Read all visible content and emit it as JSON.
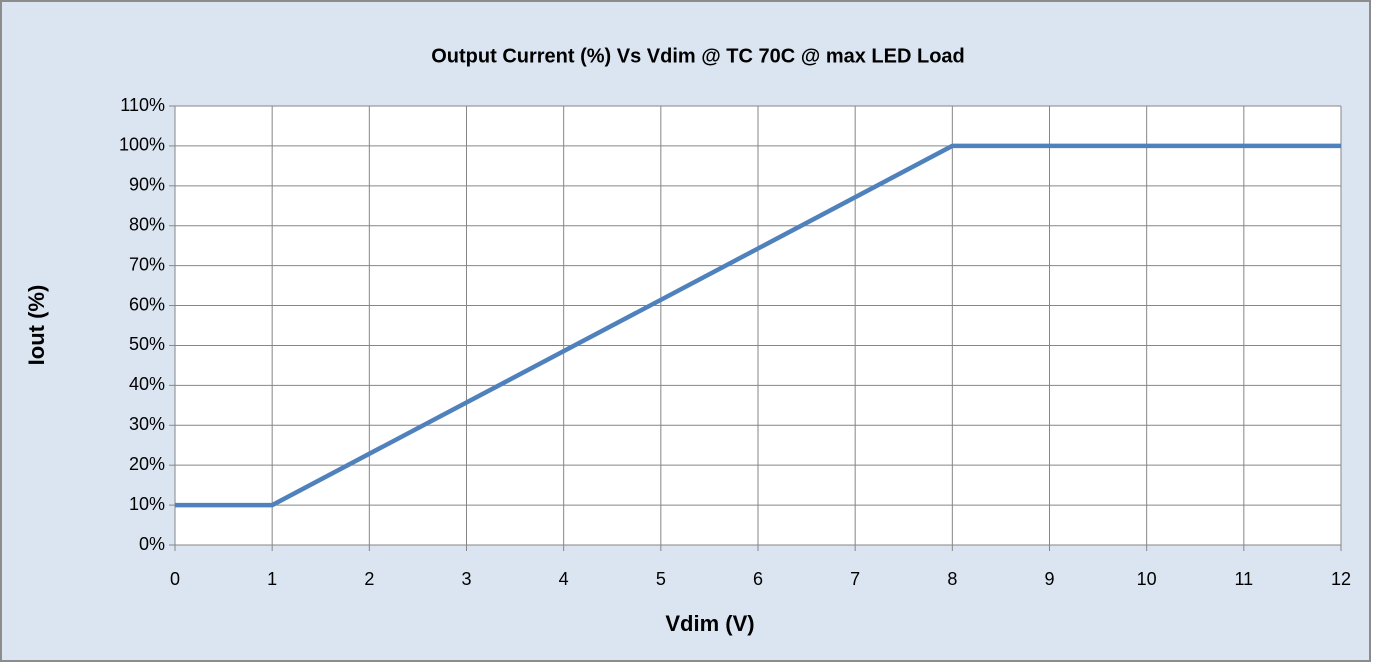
{
  "chart_data": {
    "type": "line",
    "title": "Output Current (%) Vs Vdim @ TC 70C  @ max LED Load",
    "x_label": "Vdim (V)",
    "y_label": "Iout (%)",
    "x": [
      0,
      1,
      8,
      12
    ],
    "values": [
      10,
      10,
      100,
      100
    ],
    "color": "#4f81bd",
    "xlim": [
      0,
      12
    ],
    "xticks": [
      0,
      1,
      2,
      3,
      4,
      5,
      6,
      7,
      8,
      9,
      10,
      11,
      12
    ],
    "ylim": [
      0,
      110
    ],
    "yticks": [
      {
        "value": 0,
        "label": "0%"
      },
      {
        "value": 10,
        "label": "10%"
      },
      {
        "value": 20,
        "label": "20%"
      },
      {
        "value": 30,
        "label": "30%"
      },
      {
        "value": 40,
        "label": "40%"
      },
      {
        "value": 50,
        "label": "50%"
      },
      {
        "value": 60,
        "label": "60%"
      },
      {
        "value": 70,
        "label": "70%"
      },
      {
        "value": 80,
        "label": "80%"
      },
      {
        "value": 90,
        "label": "90%"
      },
      {
        "value": 100,
        "label": "100%"
      },
      {
        "value": 110,
        "label": "110%"
      }
    ],
    "grid": true
  }
}
